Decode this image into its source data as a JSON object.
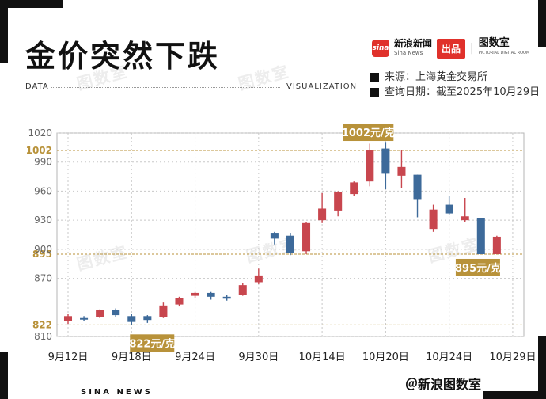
{
  "header": {
    "title": "金价突然下跌",
    "data_label": "DATA",
    "viz_label": "VISUALIZATION",
    "brand_logo": "sina",
    "brand_name": "新浪新闻",
    "brand_sub": "Sina News",
    "brand_pin": "出品",
    "brand_sep": "|",
    "brand_room": "图数室",
    "brand_room_sub": "PICTORIAL DIGITAL ROOM"
  },
  "meta": {
    "source": "来源：上海黄金交易所",
    "date": "查询日期：截至2025年10月29日"
  },
  "watermark": "图数室",
  "footer": {
    "left": "SINA NEWS",
    "right": "＠新浪图数室"
  },
  "colors": {
    "up": "#c8464e",
    "down": "#3d6a9a",
    "highlight": "#b8923a",
    "grid": "#c8c8c8"
  },
  "chart_data": {
    "type": "candlestick",
    "y_ticks": [
      810,
      822,
      870,
      895,
      900,
      930,
      960,
      990,
      1002,
      1020
    ],
    "highlight_ticks": [
      822,
      895,
      1002
    ],
    "ylim": [
      810,
      1020
    ],
    "x_ticks": [
      "9月12日",
      "9月18日",
      "9月24日",
      "9月30日",
      "10月14日",
      "10月20日",
      "10月24日",
      "10月29日"
    ],
    "x_tick_index": [
      0,
      4,
      8,
      12,
      16,
      20,
      24,
      28
    ],
    "callouts": [
      {
        "text": "1002元/克",
        "index": 19,
        "value": 1002
      },
      {
        "text": "822元/克",
        "index": 4,
        "value": 822
      },
      {
        "text": "895元/克",
        "index": 28,
        "value": 895
      }
    ],
    "candles": [
      {
        "o": 826,
        "c": 831,
        "h": 833,
        "l": 823
      },
      {
        "o": 829,
        "c": 828,
        "h": 831,
        "l": 826
      },
      {
        "o": 830,
        "c": 837,
        "h": 838,
        "l": 829
      },
      {
        "o": 837,
        "c": 832,
        "h": 839,
        "l": 830
      },
      {
        "o": 831,
        "c": 825,
        "h": 833,
        "l": 822
      },
      {
        "o": 831,
        "c": 827,
        "h": 832,
        "l": 824
      },
      {
        "o": 830,
        "c": 842,
        "h": 845,
        "l": 829
      },
      {
        "o": 843,
        "c": 850,
        "h": 851,
        "l": 841
      },
      {
        "o": 852,
        "c": 855,
        "h": 856,
        "l": 850
      },
      {
        "o": 855,
        "c": 851,
        "h": 856,
        "l": 848
      },
      {
        "o": 851,
        "c": 849,
        "h": 853,
        "l": 847
      },
      {
        "o": 853,
        "c": 863,
        "h": 865,
        "l": 852
      },
      {
        "o": 866,
        "c": 873,
        "h": 880,
        "l": 864
      },
      {
        "o": 917,
        "c": 911,
        "h": 918,
        "l": 905
      },
      {
        "o": 914,
        "c": 896,
        "h": 917,
        "l": 894
      },
      {
        "o": 898,
        "c": 927,
        "h": 928,
        "l": 895
      },
      {
        "o": 930,
        "c": 942,
        "h": 958,
        "l": 927
      },
      {
        "o": 940,
        "c": 959,
        "h": 960,
        "l": 934
      },
      {
        "o": 957,
        "c": 969,
        "h": 970,
        "l": 955
      },
      {
        "o": 970,
        "c": 1002,
        "h": 1009,
        "l": 965
      },
      {
        "o": 1004,
        "c": 978,
        "h": 1010,
        "l": 962
      },
      {
        "o": 976,
        "c": 985,
        "h": 1002,
        "l": 963
      },
      {
        "o": 977,
        "c": 951,
        "h": 977,
        "l": 933
      },
      {
        "o": 921,
        "c": 941,
        "h": 946,
        "l": 918
      },
      {
        "o": 946,
        "c": 937,
        "h": 955,
        "l": 936
      },
      {
        "o": 930,
        "c": 934,
        "h": 953,
        "l": 928
      },
      {
        "o": 932,
        "c": 895,
        "h": 932,
        "l": 895
      },
      {
        "o": 895,
        "c": 913,
        "h": 914,
        "l": 895
      }
    ]
  }
}
